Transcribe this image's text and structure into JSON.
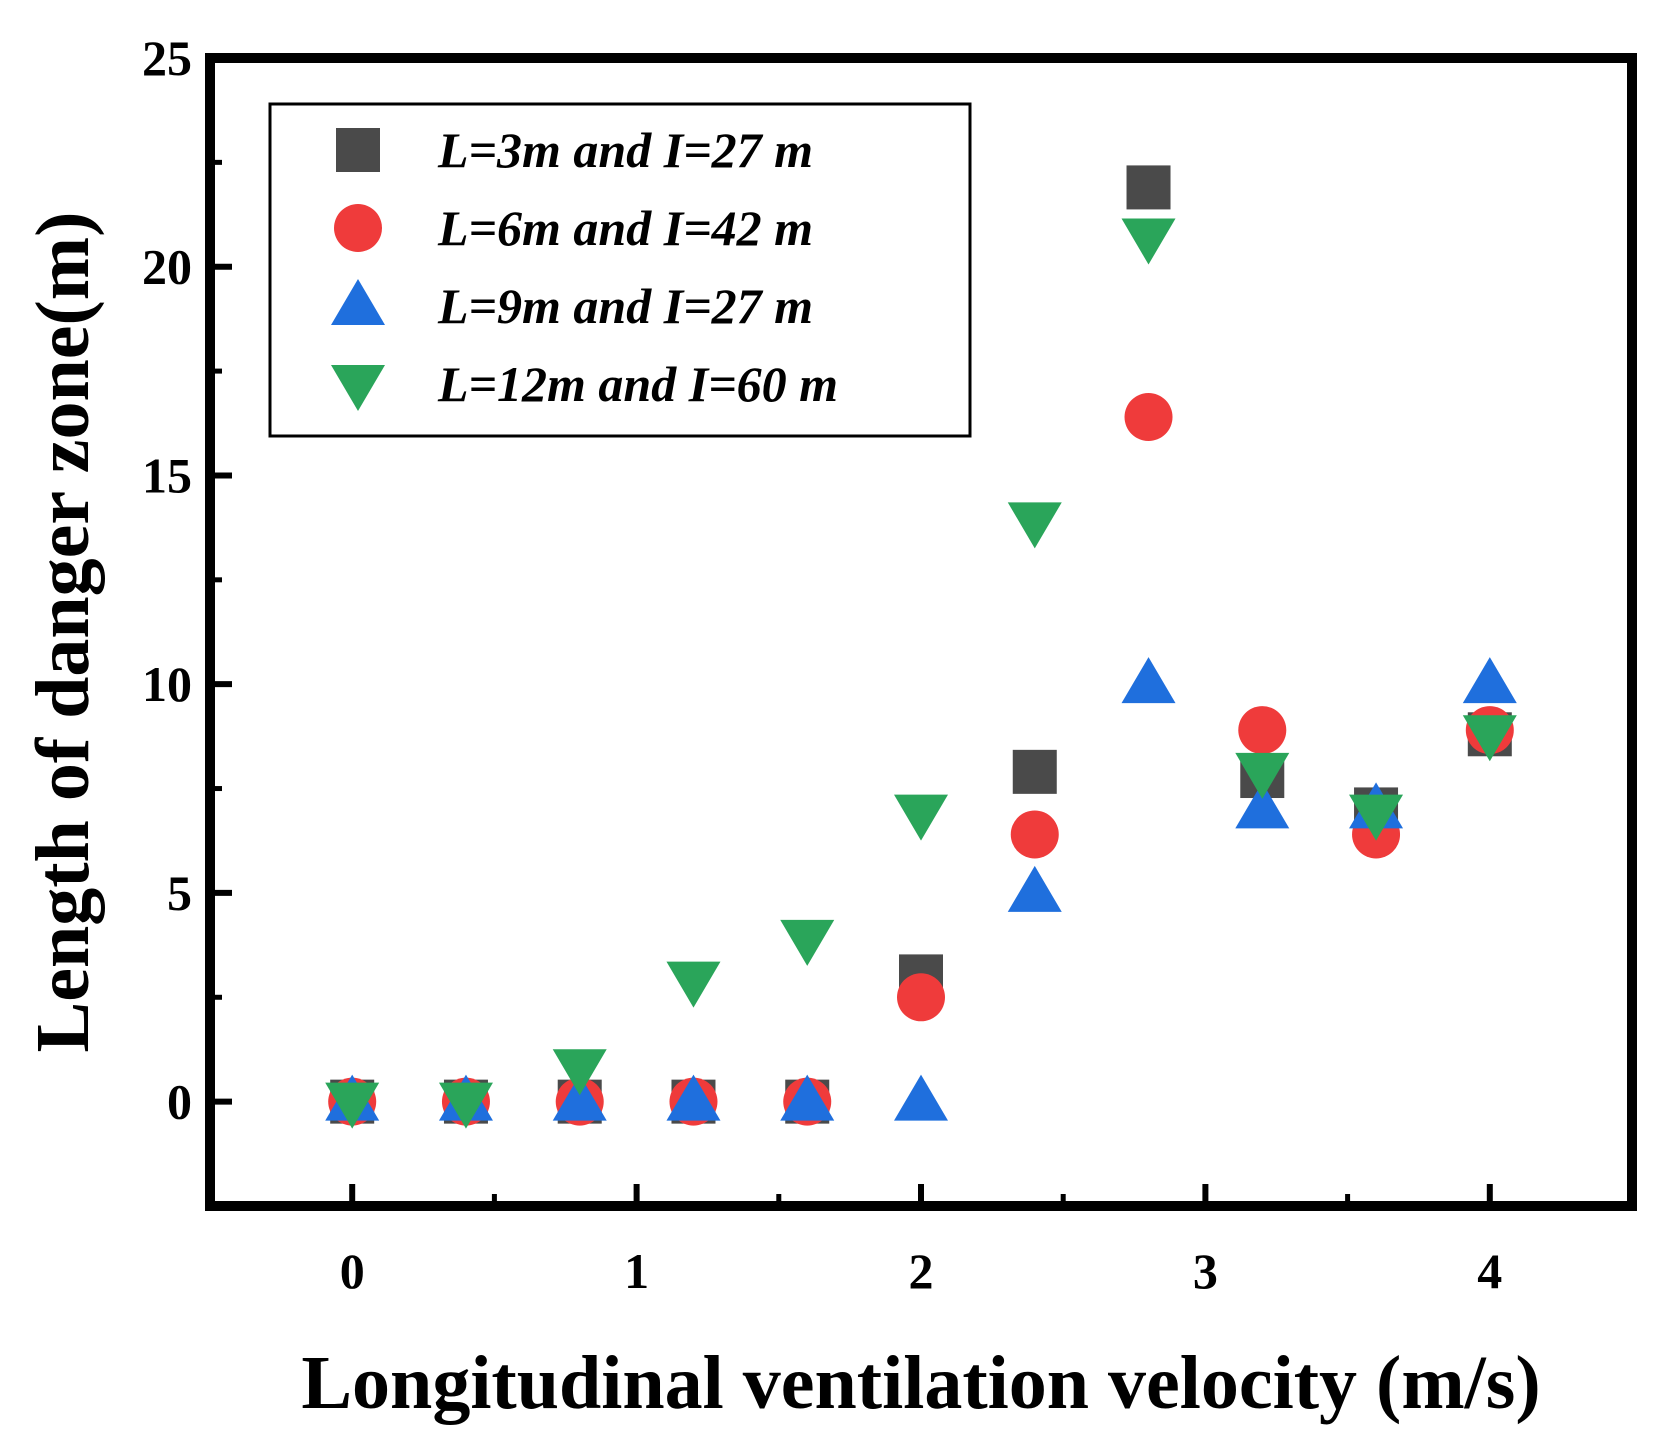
{
  "chart_data": {
    "type": "scatter",
    "xlabel": "Longitudinal ventilation velocity (m/s)",
    "ylabel": "Length of danger zone(m)",
    "xlim": [
      -0.5,
      4.5
    ],
    "ylim": [
      -2.5,
      25
    ],
    "x_ticks": [
      "0",
      "1",
      "2",
      "3",
      "4"
    ],
    "y_ticks": [
      "0",
      "5",
      "10",
      "15",
      "20",
      "25"
    ],
    "legend_position": "top-left",
    "grid": false,
    "series": [
      {
        "name": "L=3m and I=27 m",
        "marker": "square",
        "color": "#4a4a4a",
        "x": [
          0,
          0.4,
          0.8,
          1.2,
          1.6,
          2.0,
          2.4,
          2.8,
          3.2,
          3.6,
          4.0
        ],
        "y": [
          0,
          0,
          0,
          0,
          0,
          3.0,
          7.9,
          21.9,
          7.8,
          7.0,
          8.8
        ]
      },
      {
        "name": "L=6m and I=42 m",
        "marker": "circle",
        "color": "#ef3b3b",
        "x": [
          0,
          0.4,
          0.8,
          1.2,
          1.6,
          2.0,
          2.4,
          2.8,
          3.2,
          3.6,
          4.0
        ],
        "y": [
          0,
          0,
          0,
          0,
          0,
          2.5,
          6.4,
          16.4,
          8.9,
          6.4,
          8.9
        ]
      },
      {
        "name": "L=9m and I=27 m",
        "marker": "triangle-up",
        "color": "#1f6fdd",
        "x": [
          0,
          0.4,
          0.8,
          1.2,
          1.6,
          2.0,
          2.4,
          2.8,
          3.2,
          3.6,
          4.0
        ],
        "y": [
          0,
          0,
          0,
          0,
          0,
          0,
          5.0,
          10.0,
          7.0,
          7.0,
          10.0
        ]
      },
      {
        "name": "L=12m and I=60 m",
        "marker": "triangle-down",
        "color": "#2aa55a",
        "x": [
          0,
          0.4,
          0.8,
          1.2,
          1.6,
          2.0,
          2.4,
          2.8,
          3.2,
          3.6,
          4.0
        ],
        "y": [
          0,
          0,
          0.8,
          2.9,
          3.9,
          6.9,
          13.9,
          20.7,
          7.9,
          6.9,
          8.8
        ]
      }
    ]
  }
}
